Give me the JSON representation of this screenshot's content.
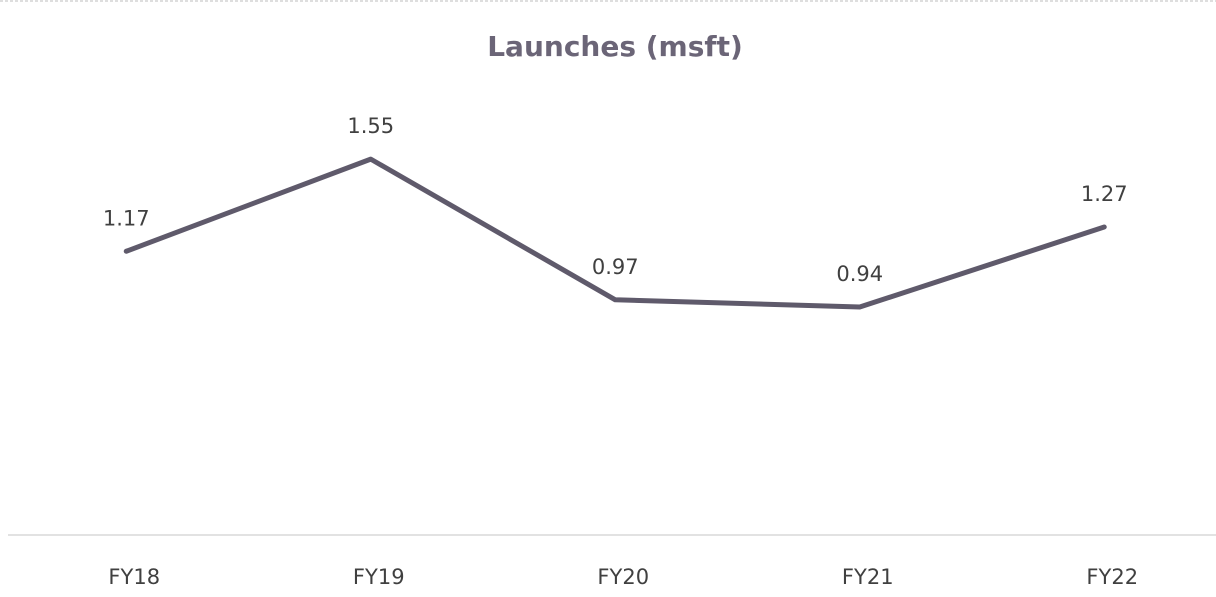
{
  "chart_data": {
    "type": "line",
    "title": "Launches (msft)",
    "categories": [
      "FY18",
      "FY19",
      "FY20",
      "FY21",
      "FY22"
    ],
    "values": [
      1.17,
      1.55,
      0.97,
      0.94,
      1.27
    ],
    "color": "#5f5a6b",
    "ylim": [
      0,
      2
    ]
  }
}
